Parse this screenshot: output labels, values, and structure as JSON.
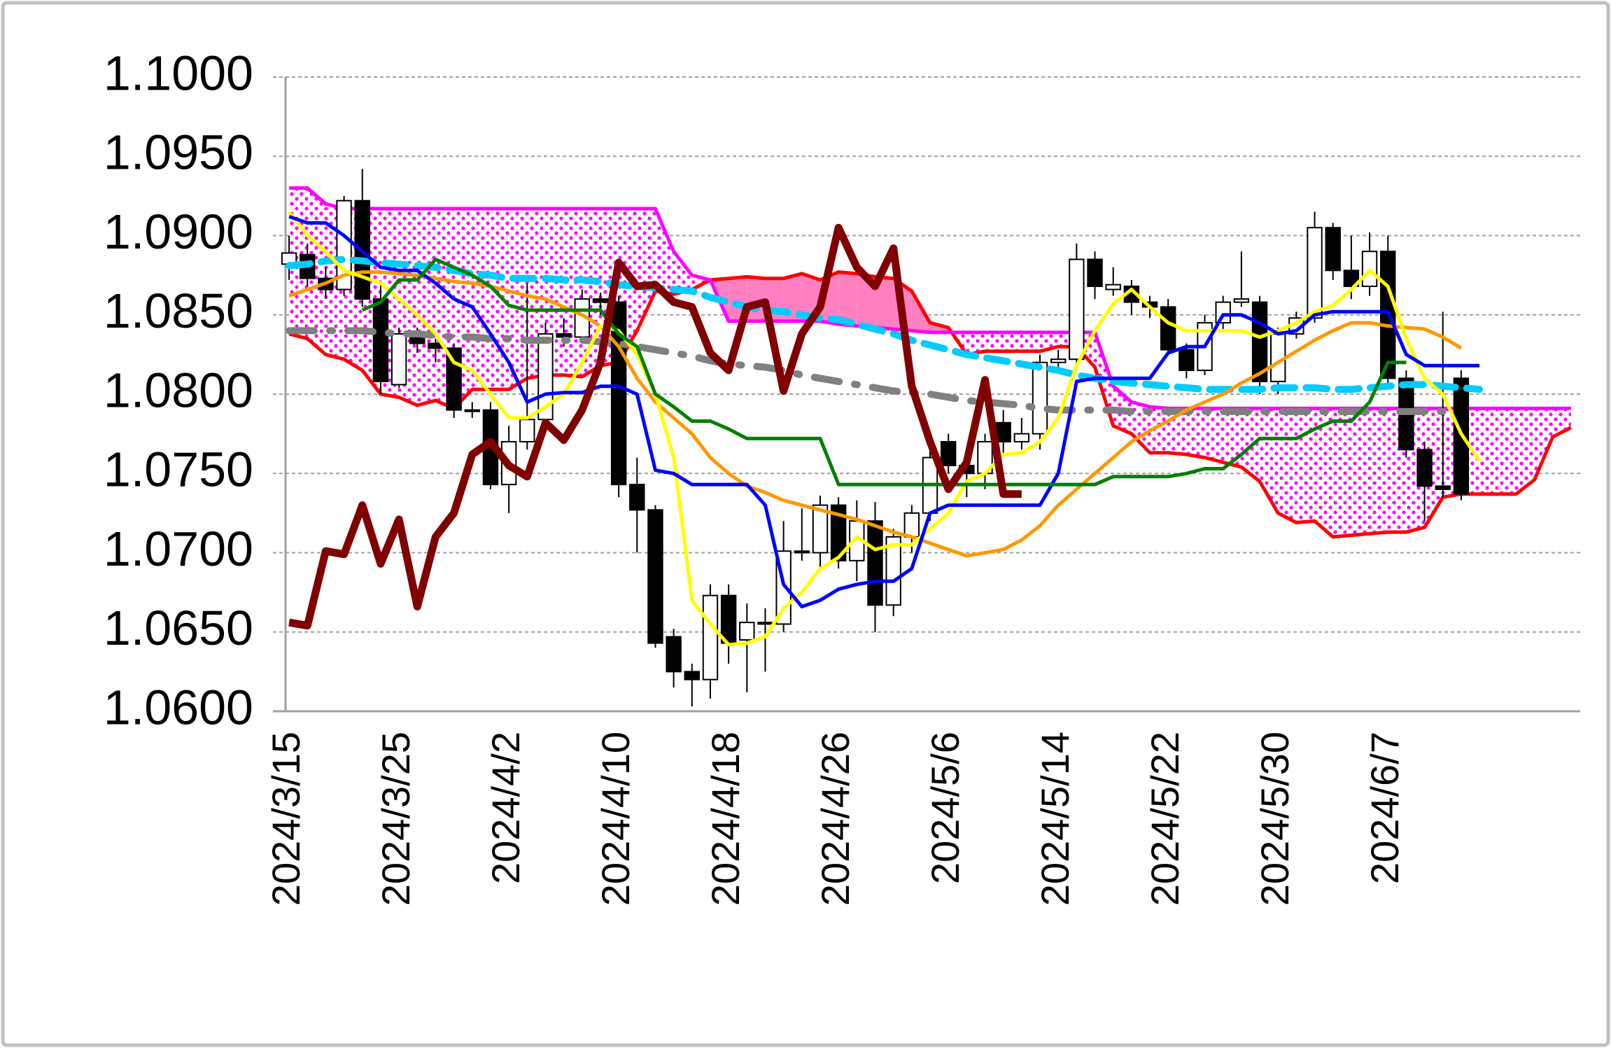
{
  "chart_data": {
    "type": "ichimoku",
    "categories": [
      "2024/3/15",
      null,
      null,
      null,
      null,
      null,
      "2024/3/25",
      null,
      null,
      null,
      null,
      null,
      "2024/4/2",
      null,
      null,
      null,
      null,
      null,
      "2024/4/10",
      null,
      null,
      null,
      null,
      null,
      "2024/4/18",
      null,
      null,
      null,
      null,
      null,
      "2024/4/26",
      null,
      null,
      null,
      null,
      null,
      "2024/5/6",
      null,
      null,
      null,
      null,
      null,
      "2024/5/14",
      null,
      null,
      null,
      null,
      null,
      "2024/5/22",
      null,
      null,
      null,
      null,
      null,
      "2024/5/30",
      null,
      null,
      null,
      null,
      null,
      "2024/6/7",
      null,
      null,
      null,
      null,
      null,
      null,
      null,
      null,
      null,
      null
    ],
    "ylim": [
      1.06,
      1.1
    ],
    "yticks": [
      {
        "value": 1.06,
        "label": "1.0600"
      },
      {
        "value": 1.065,
        "label": "1.0650"
      },
      {
        "value": 1.07,
        "label": "1.0700"
      },
      {
        "value": 1.075,
        "label": "1.0750"
      },
      {
        "value": 1.08,
        "label": "1.0800"
      },
      {
        "value": 1.085,
        "label": "1.0850"
      },
      {
        "value": 1.09,
        "label": "1.0900"
      },
      {
        "value": 1.095,
        "label": "1.0950"
      },
      {
        "value": 1.1,
        "label": "1.1000"
      }
    ],
    "grid": true,
    "candles": {
      "up_color": "#ffffff",
      "down_color": "#000000",
      "edge_color": "#000000",
      "open": [
        1.0882,
        1.0888,
        1.0873,
        1.0866,
        1.0922,
        1.086,
        1.0806,
        1.0838,
        1.0832,
        1.0829,
        1.079,
        1.079,
        1.0743,
        1.077,
        1.0784,
        1.0838,
        1.0836,
        1.086,
        1.0858,
        1.0743,
        1.0727,
        1.0647,
        1.0625,
        1.062,
        1.0673,
        1.0645,
        1.0656,
        1.0655,
        1.0701,
        1.07,
        1.073,
        1.0695,
        1.072,
        1.0667,
        1.071,
        1.0725,
        1.077,
        1.0755,
        1.075,
        1.0782,
        1.077,
        1.0775,
        1.082,
        1.0822,
        1.0885,
        1.0866,
        1.0868,
        1.0858,
        1.0855,
        1.0828,
        1.0815,
        1.0845,
        1.0858,
        1.0858,
        1.0808,
        1.0838,
        1.0848,
        1.0905,
        1.0878,
        1.0868,
        1.089,
        1.081,
        1.0765,
        1.0742,
        1.081,
        null,
        null,
        null,
        null,
        null,
        null
      ],
      "high": [
        1.09,
        1.0895,
        1.088,
        1.0925,
        1.0942,
        1.087,
        1.0842,
        1.0842,
        1.0835,
        1.0832,
        1.0795,
        1.0795,
        1.078,
        1.087,
        1.0845,
        1.0848,
        1.0866,
        1.0864,
        1.0862,
        1.076,
        1.073,
        1.0652,
        1.063,
        1.068,
        1.068,
        1.0668,
        1.0665,
        1.072,
        1.0728,
        1.0736,
        1.0735,
        1.0733,
        1.0732,
        1.0715,
        1.073,
        1.077,
        1.0775,
        1.0765,
        1.0775,
        1.079,
        1.0785,
        1.0825,
        1.0828,
        1.0895,
        1.089,
        1.088,
        1.0872,
        1.0862,
        1.086,
        1.0832,
        1.085,
        1.0862,
        1.089,
        1.0862,
        1.0842,
        1.0852,
        1.0915,
        1.0908,
        1.09,
        1.0902,
        1.09,
        1.0815,
        1.077,
        1.0852,
        1.0815,
        null,
        null,
        null,
        null,
        null,
        null
      ],
      "low": [
        1.0872,
        1.0868,
        1.086,
        1.0862,
        1.0855,
        1.08,
        1.0804,
        1.0826,
        1.082,
        1.0785,
        1.0785,
        1.074,
        1.0725,
        1.0765,
        1.078,
        1.083,
        1.0832,
        1.085,
        1.0735,
        1.07,
        1.064,
        1.0615,
        1.0603,
        1.0608,
        1.063,
        1.0612,
        1.0625,
        1.065,
        1.0695,
        1.069,
        1.069,
        1.0682,
        1.065,
        1.066,
        1.07,
        1.072,
        1.075,
        1.0735,
        1.074,
        1.0762,
        1.0765,
        1.0765,
        1.0815,
        1.0815,
        1.086,
        1.0862,
        1.085,
        1.0848,
        1.0825,
        1.081,
        1.0812,
        1.084,
        1.0855,
        1.08,
        1.08,
        1.0835,
        1.0845,
        1.0872,
        1.086,
        1.0862,
        1.0805,
        1.076,
        1.072,
        1.0735,
        1.0733,
        null,
        null,
        null,
        null,
        null,
        null
      ],
      "close": [
        1.0889,
        1.0873,
        1.0866,
        1.0922,
        1.086,
        1.0808,
        1.0838,
        1.0832,
        1.0829,
        1.079,
        1.079,
        1.0743,
        1.077,
        1.0784,
        1.0838,
        1.0836,
        1.086,
        1.0858,
        1.0743,
        1.0727,
        1.0643,
        1.0625,
        1.062,
        1.0673,
        1.0643,
        1.0656,
        1.0655,
        1.0701,
        1.07,
        1.073,
        1.0695,
        1.072,
        1.0667,
        1.071,
        1.0725,
        1.076,
        1.0755,
        1.075,
        1.077,
        1.077,
        1.0775,
        1.082,
        1.0822,
        1.0885,
        1.0868,
        1.0869,
        1.0858,
        1.0855,
        1.0828,
        1.0815,
        1.0845,
        1.0858,
        1.086,
        1.0808,
        1.0838,
        1.0848,
        1.0905,
        1.0878,
        1.0868,
        1.089,
        1.081,
        1.0765,
        1.0742,
        1.074,
        1.0737,
        null,
        null,
        null,
        null,
        null,
        null
      ]
    },
    "cloud": {
      "above_color": "#ff00ff",
      "below_color": "#ff80c0",
      "span_a": [
        1.0838,
        1.0835,
        1.0825,
        1.0822,
        1.0815,
        1.08,
        1.0798,
        1.0793,
        1.0796,
        1.0791,
        1.0803,
        1.0803,
        1.0803,
        1.081,
        1.0812,
        1.0812,
        1.0811,
        1.0818,
        1.082,
        1.084,
        1.0865,
        1.0863,
        1.0866,
        1.0872,
        1.0873,
        1.0874,
        1.0873,
        1.0873,
        1.0876,
        1.0872,
        1.0877,
        1.0876,
        1.0874,
        1.0873,
        1.0865,
        1.0845,
        1.0842,
        1.0825,
        1.0827,
        1.0827,
        1.0827,
        1.0827,
        1.083,
        1.083,
        1.0817,
        1.078,
        1.0775,
        1.0763,
        1.0763,
        1.0762,
        1.076,
        1.0757,
        1.0754,
        1.0745,
        1.0725,
        1.0719,
        1.072,
        1.071,
        1.0711,
        1.0712,
        1.0713,
        1.0713,
        1.0716,
        1.0735,
        1.0737,
        1.0737,
        1.0737,
        1.0737,
        1.0746,
        1.0773,
        1.0779
      ],
      "span_a_color": "#ff0000",
      "span_b": [
        1.093,
        1.093,
        1.092,
        1.0917,
        1.0917,
        1.0917,
        1.0917,
        1.0917,
        1.0917,
        1.0917,
        1.0917,
        1.0917,
        1.0917,
        1.0917,
        1.0917,
        1.0917,
        1.0917,
        1.0917,
        1.0917,
        1.0917,
        1.0917,
        1.089,
        1.0875,
        1.0872,
        1.0846,
        1.0846,
        1.0846,
        1.0846,
        1.0846,
        1.0846,
        1.0844,
        1.0843,
        1.0842,
        1.0841,
        1.084,
        1.0839,
        1.0839,
        1.0839,
        1.0839,
        1.0839,
        1.0839,
        1.0839,
        1.0839,
        1.0839,
        1.0839,
        1.0805,
        1.0795,
        1.0792,
        1.0791,
        1.0791,
        1.0791,
        1.0791,
        1.0791,
        1.0791,
        1.0791,
        1.0791,
        1.0791,
        1.0791,
        1.0791,
        1.0791,
        1.0791,
        1.0791,
        1.0791,
        1.0791,
        1.0791,
        1.0791,
        1.0791,
        1.0791,
        1.0791,
        1.0791,
        1.0791
      ],
      "span_b_color": "#ff00ff"
    },
    "series": [
      {
        "color": "#808080",
        "style": "dash-gap",
        "values": [
          1.084,
          1.084,
          1.084,
          1.084,
          1.084,
          1.0839,
          1.0838,
          1.0838,
          1.0837,
          1.0836,
          1.0836,
          1.0835,
          1.0835,
          1.0834,
          1.0834,
          1.0834,
          1.0834,
          1.0833,
          1.0832,
          1.083,
          1.0828,
          1.0826,
          1.0824,
          1.0821,
          1.0819,
          1.0818,
          1.0817,
          1.0815,
          1.0812,
          1.081,
          1.0808,
          1.0806,
          1.0804,
          1.0802,
          1.0801,
          1.08,
          1.0798,
          1.0796,
          1.0795,
          1.0794,
          1.0793,
          1.0791,
          1.079,
          1.079,
          1.079,
          1.079,
          1.0789,
          1.0789,
          1.0789,
          1.0789,
          1.0789,
          1.0789,
          1.0789,
          1.0789,
          1.0789,
          1.0789,
          1.0789,
          1.0789,
          1.0789,
          1.0789,
          1.0789,
          1.0789,
          1.0789,
          1.0789,
          null,
          null,
          null,
          null,
          null,
          null,
          null
        ]
      },
      {
        "color": "#00ccff",
        "style": "dashed",
        "values": [
          1.0881,
          1.0882,
          1.0884,
          1.0885,
          1.0884,
          1.0883,
          1.0882,
          1.0881,
          1.088,
          1.0878,
          1.0876,
          1.0875,
          1.0873,
          1.0873,
          1.0873,
          1.0872,
          1.0872,
          1.0871,
          1.0869,
          1.0868,
          1.0867,
          1.0866,
          1.0865,
          1.0861,
          1.0858,
          1.0855,
          1.0853,
          1.0852,
          1.085,
          1.0848,
          1.0847,
          1.0844,
          1.0841,
          1.0838,
          1.0834,
          1.0831,
          1.0828,
          1.0825,
          1.0823,
          1.0821,
          1.0819,
          1.0817,
          1.0815,
          1.0812,
          1.081,
          1.0808,
          1.0807,
          1.0806,
          1.0805,
          1.0804,
          1.0803,
          1.0803,
          1.0803,
          1.0803,
          1.0804,
          1.0804,
          1.0804,
          1.0803,
          1.0803,
          1.0804,
          1.0805,
          1.0806,
          1.0806,
          1.0805,
          1.0804,
          1.0803,
          null,
          null,
          null,
          null,
          null
        ]
      },
      {
        "color": "#ff9900",
        "style": "normal",
        "values": [
          1.0862,
          1.0866,
          1.087,
          1.0875,
          1.0877,
          1.0877,
          1.0876,
          1.0875,
          1.0873,
          1.0871,
          1.087,
          1.0868,
          1.0865,
          1.0862,
          1.086,
          1.0855,
          1.085,
          1.0843,
          1.083,
          1.081,
          1.0795,
          1.0785,
          1.0775,
          1.076,
          1.075,
          1.0742,
          1.0738,
          1.0733,
          1.073,
          1.0727,
          1.0724,
          1.0721,
          1.0717,
          1.0713,
          1.071,
          1.0706,
          1.0702,
          1.0698,
          1.07,
          1.0702,
          1.0708,
          1.0717,
          1.073,
          1.074,
          1.075,
          1.076,
          1.077,
          1.0777,
          1.0783,
          1.079,
          1.0795,
          1.08,
          1.0807,
          1.0813,
          1.082,
          1.0827,
          1.0834,
          1.084,
          1.0845,
          1.0845,
          1.0843,
          1.0842,
          1.0841,
          1.0836,
          1.0829,
          null,
          null,
          null,
          null,
          null,
          null
        ]
      },
      {
        "color": "#ffff00",
        "style": "normal",
        "values": [
          1.0915,
          1.09,
          1.089,
          1.0878,
          1.0874,
          1.087,
          1.086,
          1.085,
          1.0838,
          1.082,
          1.0815,
          1.08,
          1.0785,
          1.0785,
          1.0792,
          1.08,
          1.082,
          1.0843,
          1.084,
          1.0825,
          1.08,
          1.076,
          1.067,
          1.0655,
          1.0642,
          1.0643,
          1.0647,
          1.0665,
          1.0675,
          1.069,
          1.0697,
          1.071,
          1.0702,
          1.0705,
          1.0705,
          1.0715,
          1.0725,
          1.0745,
          1.075,
          1.0762,
          1.0763,
          1.077,
          1.0785,
          1.0818,
          1.084,
          1.0857,
          1.0866,
          1.0855,
          1.0845,
          1.084,
          1.084,
          1.084,
          1.084,
          1.0836,
          1.084,
          1.0845,
          1.0852,
          1.0856,
          1.0866,
          1.0878,
          1.0868,
          1.0835,
          1.081,
          1.08,
          1.0775,
          1.0758,
          null,
          null,
          null,
          null,
          null
        ]
      },
      {
        "color": "#0000ff",
        "style": "normal",
        "values": [
          1.0912,
          1.0908,
          1.0908,
          1.09,
          1.089,
          1.088,
          1.0878,
          1.0878,
          1.087,
          1.086,
          1.0855,
          1.0838,
          1.082,
          1.0795,
          1.08,
          1.0801,
          1.0801,
          1.0805,
          1.0805,
          1.08,
          1.0752,
          1.075,
          1.0743,
          1.0743,
          1.0743,
          1.0743,
          1.073,
          1.068,
          1.0666,
          1.067,
          1.0677,
          1.068,
          1.0682,
          1.0682,
          1.069,
          1.0725,
          1.073,
          1.073,
          1.073,
          1.073,
          1.073,
          1.073,
          1.075,
          1.0808,
          1.081,
          1.081,
          1.081,
          1.081,
          1.0826,
          1.083,
          1.083,
          1.085,
          1.085,
          1.0845,
          1.0838,
          1.084,
          1.085,
          1.0852,
          1.0852,
          1.0852,
          1.0852,
          1.0825,
          1.0818,
          1.0818,
          1.0818,
          1.0818,
          null,
          null,
          null,
          null,
          null
        ]
      },
      {
        "color": "#008000",
        "style": "normal",
        "values": [
          null,
          null,
          null,
          null,
          1.0853,
          1.0858,
          1.0872,
          1.0872,
          1.0885,
          1.088,
          1.0875,
          1.0868,
          1.0856,
          1.0853,
          1.0853,
          1.0853,
          1.0853,
          1.0853,
          1.0838,
          1.083,
          1.08,
          1.0792,
          1.0783,
          1.0783,
          1.0778,
          1.0772,
          1.0772,
          1.0772,
          1.0772,
          1.0772,
          1.0743,
          1.0743,
          1.0743,
          1.0743,
          1.0743,
          1.0743,
          1.0743,
          1.0743,
          1.0743,
          1.0743,
          1.0743,
          1.0743,
          1.0743,
          1.0743,
          1.0743,
          1.0748,
          1.0748,
          1.0748,
          1.0748,
          1.075,
          1.0753,
          1.0753,
          1.0762,
          1.0772,
          1.0772,
          1.0772,
          1.0778,
          1.0783,
          1.0783,
          1.0795,
          1.082,
          1.082,
          null,
          null,
          null,
          null,
          null,
          null,
          null,
          null,
          null
        ]
      },
      {
        "color": "#800000",
        "style": "thick",
        "values": [
          1.0656,
          1.0654,
          1.0701,
          1.0699,
          1.073,
          1.0693,
          1.0721,
          1.0666,
          1.071,
          1.0725,
          1.0762,
          1.077,
          1.0755,
          1.0748,
          1.0782,
          1.0771,
          1.079,
          1.082,
          1.0883,
          1.0868,
          1.0869,
          1.0858,
          1.0855,
          1.0826,
          1.0815,
          1.0855,
          1.0858,
          1.0802,
          1.0838,
          1.0855,
          1.0905,
          1.088,
          1.0868,
          1.0892,
          1.0805,
          1.077,
          1.074,
          1.0757,
          1.0809,
          1.0737,
          1.0737,
          null,
          null,
          null,
          null,
          null,
          null,
          null,
          null,
          null,
          null,
          null,
          null,
          null,
          null,
          null,
          null,
          null,
          null,
          null,
          null,
          null,
          null,
          null,
          null,
          null,
          null,
          null,
          null,
          null,
          null
        ]
      }
    ]
  }
}
